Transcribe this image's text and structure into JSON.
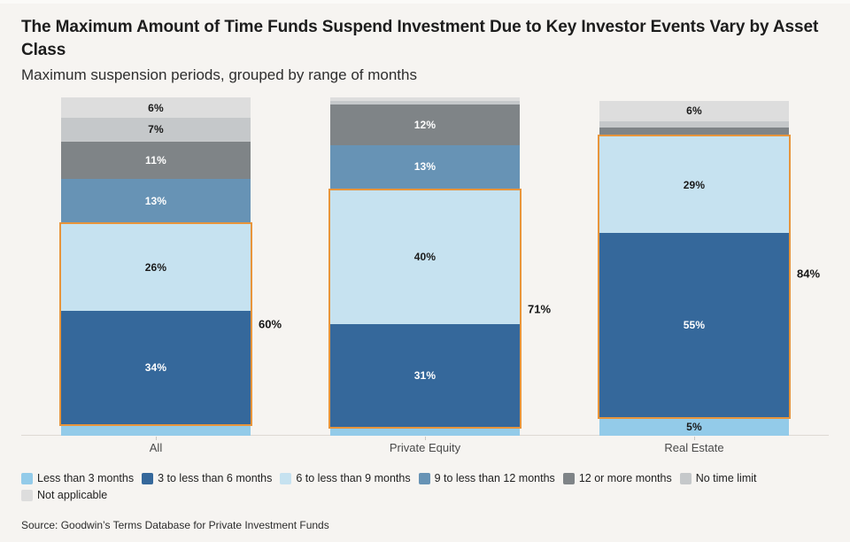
{
  "chart_data": {
    "type": "bar",
    "variant": "stacked-100-percent",
    "title": "The Maximum Amount of Time Funds Suspend Investment Due to Key Investor Events Vary by Asset Class",
    "subtitle": "Maximum suspension periods, grouped by range of months",
    "source": "Source: Goodwin’s Terms Database for Private Investment Funds",
    "categories": [
      "All",
      "Private Equity",
      "Real Estate"
    ],
    "series": [
      {
        "name": "Less than 3 months",
        "color": "#93cbe9",
        "label_color": "#1a1a1a",
        "values": [
          3,
          2,
          5
        ]
      },
      {
        "name": "3 to less than 6 months",
        "color": "#35689b",
        "label_color": "#ffffff",
        "values": [
          34,
          31,
          55
        ]
      },
      {
        "name": "6 to less than 9 months",
        "color": "#c6e2f0",
        "label_color": "#1a1a1a",
        "values": [
          26,
          40,
          29
        ]
      },
      {
        "name": "9 to less than 12 months",
        "color": "#6793b5",
        "label_color": "#ffffff",
        "values": [
          13,
          13,
          0
        ]
      },
      {
        "name": "12 or more months",
        "color": "#7f8487",
        "label_color": "#ffffff",
        "values": [
          11,
          12,
          2
        ]
      },
      {
        "name": "No time limit",
        "color": "#c5c8ca",
        "label_color": "#1a1a1a",
        "values": [
          7,
          1,
          2
        ]
      },
      {
        "name": "Not applicable",
        "color": "#dddddd",
        "label_color": "#1a1a1a",
        "values": [
          6,
          1,
          6
        ]
      }
    ],
    "stack_order": "bottom-to-top",
    "highlight_box": {
      "series": [
        "3 to less than 6 months",
        "6 to less than 9 months"
      ],
      "totals": [
        60,
        71,
        84
      ],
      "color": "#e8953b"
    },
    "label_min_value": 5,
    "ylim": [
      0,
      100
    ],
    "grid": false,
    "legend_position": "bottom"
  }
}
